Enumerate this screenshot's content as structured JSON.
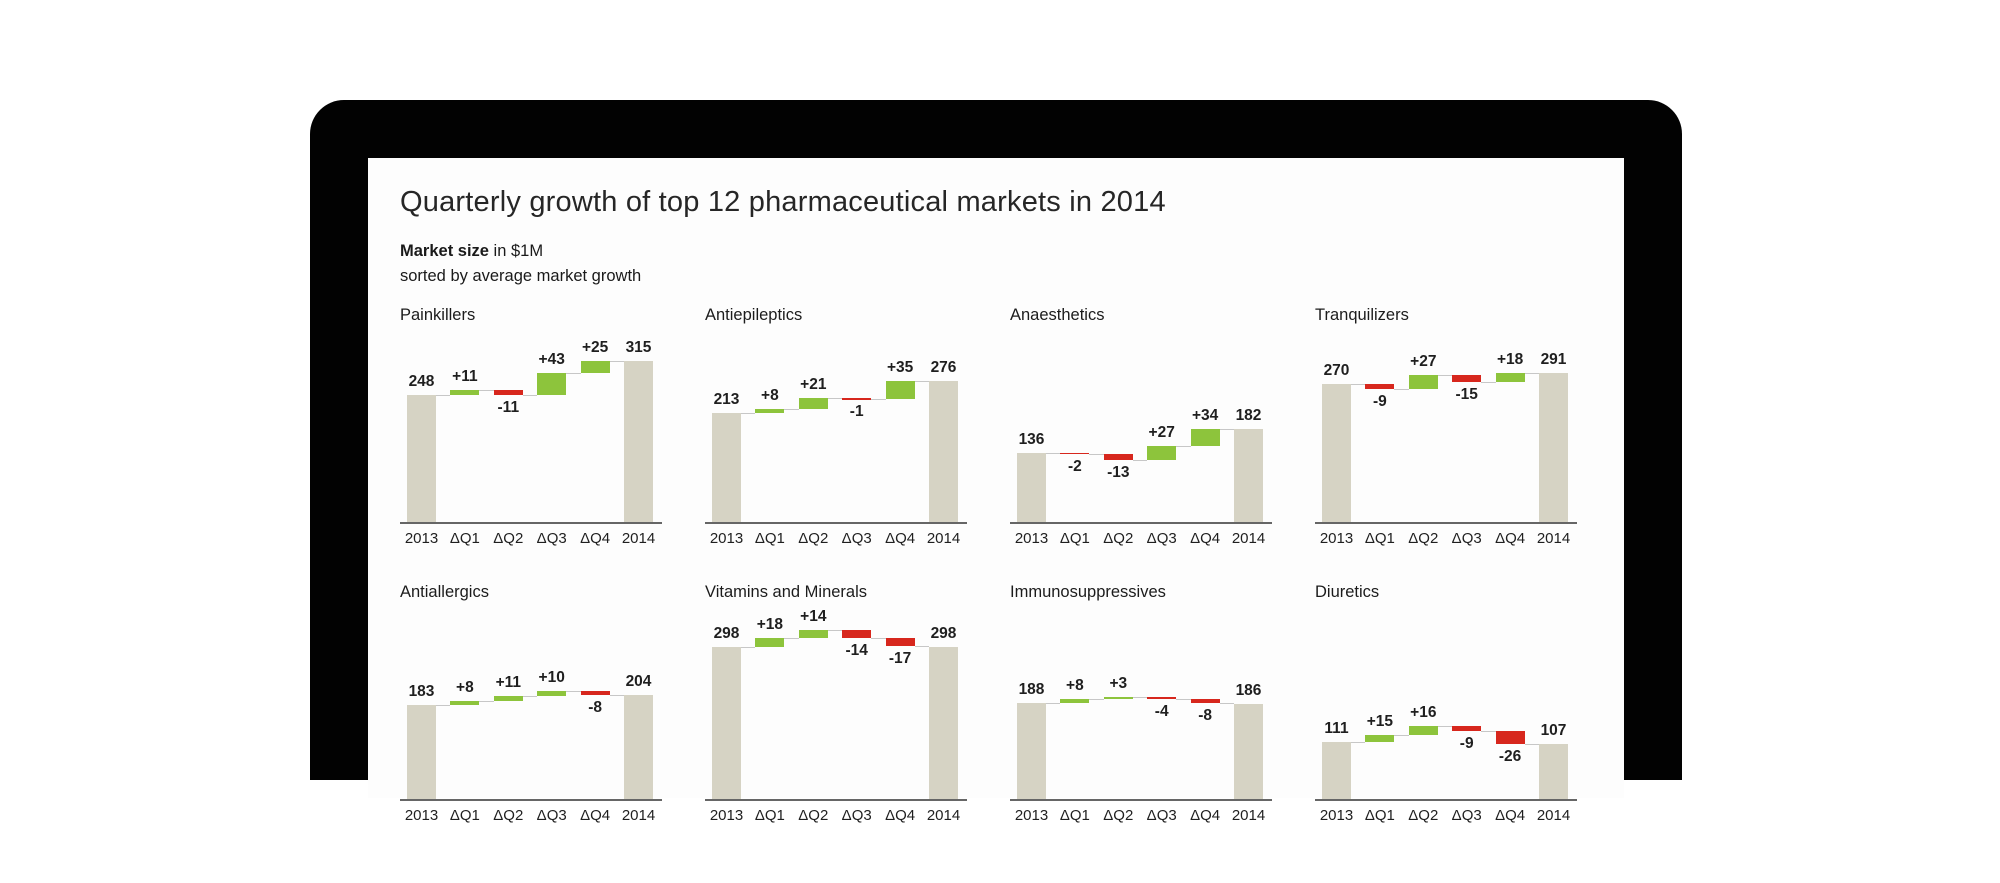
{
  "header": {
    "title": "Quarterly growth of top 12 pharmaceutical markets in 2014",
    "subtitle_bold": "Market size",
    "subtitle_rest": " in $1M",
    "subtitle_note": "sorted by average market growth"
  },
  "axis_categories": [
    "2013",
    "ΔQ1",
    "ΔQ2",
    "ΔQ3",
    "ΔQ4",
    "2014"
  ],
  "colors": {
    "increase": "#8dc43c",
    "decrease": "#d7271d",
    "total_bar": "#d6d3c4",
    "device_bezel": "#020202",
    "page_background": "#fdfdfd",
    "backdrop_green": "#178a4e"
  },
  "chart_data": [
    {
      "type": "waterfall",
      "title": "Painkillers",
      "unit": "$1M",
      "start_label": "248",
      "end_label": "315",
      "start": 248,
      "deltas": [
        11,
        -11,
        43,
        25
      ],
      "end": 315
    },
    {
      "type": "waterfall",
      "title": "Antiepileptics",
      "unit": "$1M",
      "start_label": "213",
      "end_label": "276",
      "start": 213,
      "deltas": [
        8,
        21,
        -1,
        35
      ],
      "end": 276
    },
    {
      "type": "waterfall",
      "title": "Anaesthetics",
      "unit": "$1M",
      "start_label": "136",
      "end_label": "182",
      "start": 136,
      "deltas": [
        -2,
        -13,
        27,
        34
      ],
      "end": 182
    },
    {
      "type": "waterfall",
      "title": "Tranquilizers",
      "unit": "$1M",
      "start_label": "270",
      "end_label": "291",
      "start": 270,
      "deltas": [
        -9,
        27,
        -15,
        18
      ],
      "end": 291
    },
    {
      "type": "waterfall",
      "title": "Antiallergics",
      "unit": "$1M",
      "start_label": "183",
      "end_label": "204",
      "start": 183,
      "deltas": [
        8,
        11,
        10,
        -8
      ],
      "end": 204
    },
    {
      "type": "waterfall",
      "title": "Vitamins and Minerals",
      "unit": "$1M",
      "start_label": "298",
      "end_label": "298",
      "start": 298,
      "deltas": [
        18,
        14,
        -14,
        -17
      ],
      "end": 298
    },
    {
      "type": "waterfall",
      "title": "Immunosuppressives",
      "unit": "$1M",
      "start_label": "188",
      "end_label": "186",
      "start": 188,
      "deltas": [
        8,
        3,
        -4,
        -8
      ],
      "end": 186
    },
    {
      "type": "waterfall",
      "title": "Diuretics",
      "unit": "$1M",
      "start_label": "111",
      "end_label": "107",
      "start": 111,
      "deltas": [
        15,
        16,
        -9,
        -26
      ],
      "end": 107
    }
  ]
}
